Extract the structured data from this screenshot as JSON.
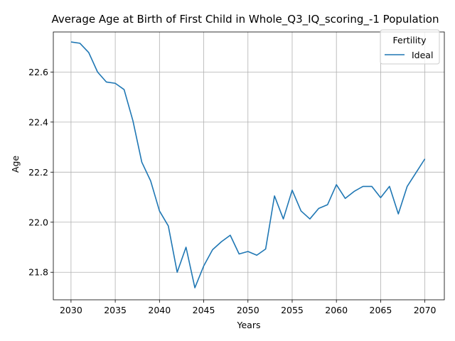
{
  "chart_data": {
    "type": "line",
    "title": "Average Age at Birth of First Child in Whole_Q3_IQ_scoring_-1 Population",
    "xlabel": "Years",
    "ylabel": "Age",
    "xlim": [
      2028,
      2072.2
    ],
    "ylim": [
      21.69,
      22.76
    ],
    "xticks": [
      2030,
      2035,
      2040,
      2045,
      2050,
      2055,
      2060,
      2065,
      2070
    ],
    "yticks": [
      21.8,
      22.0,
      22.2,
      22.4,
      22.6
    ],
    "ytick_labels": [
      "21.8",
      "22.0",
      "22.2",
      "22.4",
      "22.6"
    ],
    "grid": true,
    "legend": {
      "title": "Fertility",
      "placement": "top-right"
    },
    "series": [
      {
        "name": "Ideal",
        "color": "#1f77b4",
        "x": [
          2030,
          2031,
          2032,
          2033,
          2034,
          2035,
          2036,
          2037,
          2038,
          2039,
          2040,
          2041,
          2042,
          2043,
          2044,
          2045,
          2046,
          2047,
          2048,
          2049,
          2050,
          2051,
          2052,
          2053,
          2054,
          2055,
          2056,
          2057,
          2058,
          2059,
          2060,
          2061,
          2062,
          2063,
          2064,
          2065,
          2066,
          2067,
          2068,
          2069,
          2070
        ],
        "y": [
          22.72,
          22.715,
          22.678,
          22.6,
          22.56,
          22.555,
          22.53,
          22.405,
          22.24,
          22.165,
          22.045,
          21.985,
          21.8,
          21.9,
          21.738,
          21.825,
          21.89,
          21.922,
          21.948,
          21.873,
          21.883,
          21.868,
          21.893,
          22.105,
          22.013,
          22.128,
          22.045,
          22.013,
          22.055,
          22.07,
          22.15,
          22.095,
          22.123,
          22.143,
          22.143,
          22.098,
          22.143,
          22.033,
          22.143,
          22.198,
          22.253
        ]
      }
    ]
  }
}
